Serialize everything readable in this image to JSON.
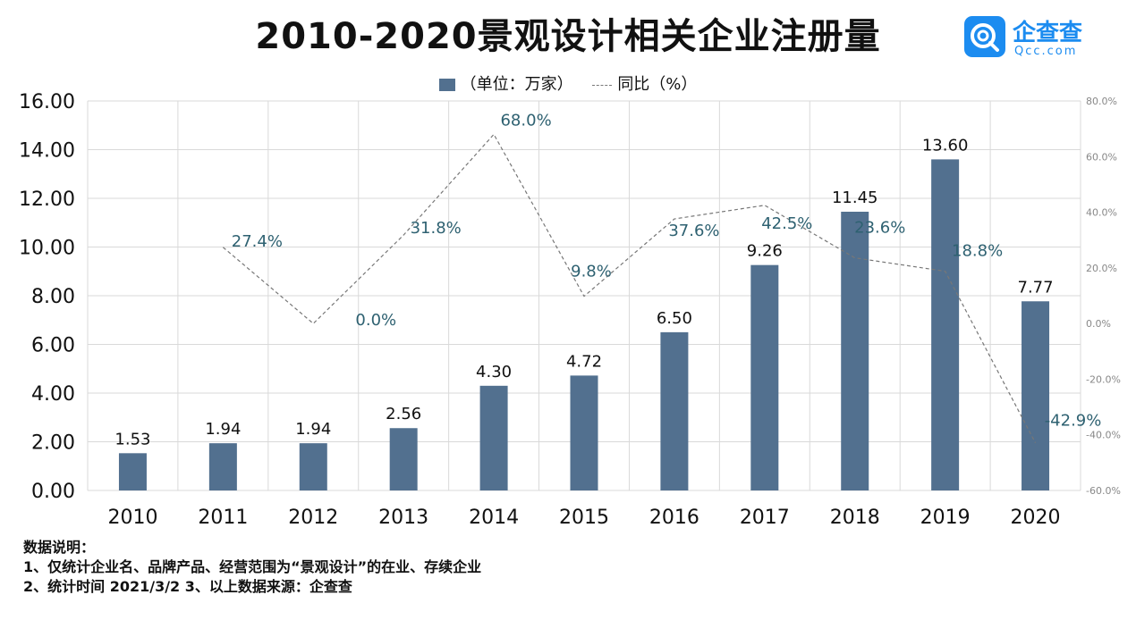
{
  "title": "2010-2020景观设计相关企业注册量",
  "logo": {
    "name": "企查查",
    "sub": "Qcc.com",
    "color": "#1c8cf0"
  },
  "legend": {
    "bar_label": "（单位：万家）",
    "line_label": "同比（%）"
  },
  "notes": {
    "heading": "数据说明：",
    "line1": "1、仅统计企业名、品牌产品、经营范围为“景观设计”的在业、存续企业",
    "line2": "2、统计时间 2021/3/2    3、以上数据来源：企查查"
  },
  "chart_data": {
    "type": "bar",
    "categories": [
      "2010",
      "2011",
      "2012",
      "2013",
      "2014",
      "2015",
      "2016",
      "2017",
      "2018",
      "2019",
      "2020"
    ],
    "series": [
      {
        "name": "（单位：万家）",
        "type": "bar",
        "axis": "left",
        "color": "#52708f",
        "values": [
          1.53,
          1.94,
          1.94,
          2.56,
          4.3,
          4.72,
          6.5,
          9.26,
          11.45,
          13.6,
          7.77
        ],
        "labels": [
          "1.53",
          "1.94",
          "1.94",
          "2.56",
          "4.30",
          "4.72",
          "6.50",
          "9.26",
          "11.45",
          "13.60",
          "7.77"
        ]
      },
      {
        "name": "同比（%）",
        "type": "line",
        "axis": "right",
        "style": "dashed",
        "color": "#777777",
        "values": [
          null,
          27.4,
          0.0,
          31.8,
          68.0,
          9.8,
          37.6,
          42.5,
          23.6,
          18.8,
          -42.9
        ],
        "labels": [
          null,
          "27.4%",
          "0.0%",
          "31.8%",
          "68.0%",
          "9.8%",
          "37.6%",
          "42.5%",
          "23.6%",
          "18.8%",
          "-42.9%"
        ]
      }
    ],
    "left_axis": {
      "ylim": [
        0,
        16
      ],
      "ticks": [
        "0.00",
        "2.00",
        "4.00",
        "6.00",
        "8.00",
        "10.00",
        "12.00",
        "14.00",
        "16.00"
      ]
    },
    "right_axis": {
      "ylim": [
        -60,
        80
      ],
      "ticks": [
        "-60.0%",
        "-40.0%",
        "-20.0%",
        "0.0%",
        "20.0%",
        "40.0%",
        "60.0%",
        "80.0%"
      ]
    },
    "label_color": "#2e6171",
    "grid": true
  }
}
